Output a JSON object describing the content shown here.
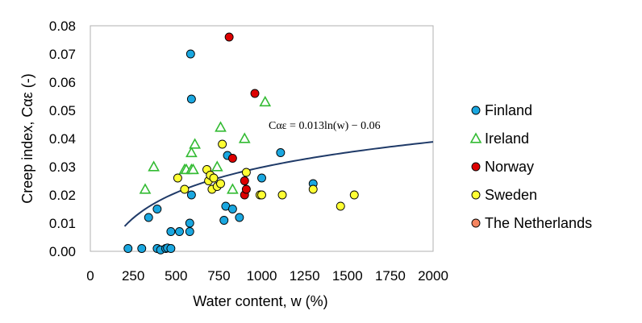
{
  "chart_data": {
    "type": "scatter",
    "xlabel": "Water content, w (%)",
    "ylabel": "Creep index, Cαε (-)",
    "xlim": [
      0,
      2000
    ],
    "ylim": [
      0,
      0.08
    ],
    "xticks": [
      "0",
      "250",
      "500",
      "750",
      "1000",
      "1250",
      "1500",
      "1750",
      "2000"
    ],
    "yticks": [
      "0.00",
      "0.01",
      "0.02",
      "0.03",
      "0.04",
      "0.05",
      "0.06",
      "0.07",
      "0.08"
    ],
    "grid": false,
    "legend_position": "right",
    "series": [
      {
        "name": "Finland",
        "marker": "circle",
        "color": "#1aa7e0",
        "points": [
          [
            220,
            0.001
          ],
          [
            300,
            0.001
          ],
          [
            340,
            0.012
          ],
          [
            390,
            0.015
          ],
          [
            390,
            0.001
          ],
          [
            410,
            0.0005
          ],
          [
            440,
            0.001
          ],
          [
            450,
            0.0012
          ],
          [
            470,
            0.001
          ],
          [
            470,
            0.007
          ],
          [
            520,
            0.007
          ],
          [
            580,
            0.007
          ],
          [
            580,
            0.01
          ],
          [
            585,
            0.07
          ],
          [
            590,
            0.054
          ],
          [
            590,
            0.02
          ],
          [
            780,
            0.011
          ],
          [
            790,
            0.016
          ],
          [
            800,
            0.034
          ],
          [
            830,
            0.015
          ],
          [
            870,
            0.012
          ],
          [
            1000,
            0.026
          ],
          [
            1110,
            0.035
          ],
          [
            1300,
            0.024
          ]
        ]
      },
      {
        "name": "Ireland",
        "marker": "triangle",
        "color": "#33bb33",
        "points": [
          [
            320,
            0.022
          ],
          [
            370,
            0.03
          ],
          [
            550,
            0.029
          ],
          [
            560,
            0.029
          ],
          [
            590,
            0.029
          ],
          [
            590,
            0.035
          ],
          [
            600,
            0.029
          ],
          [
            610,
            0.038
          ],
          [
            740,
            0.03
          ],
          [
            760,
            0.044
          ],
          [
            830,
            0.022
          ],
          [
            900,
            0.04
          ],
          [
            1020,
            0.053
          ]
        ]
      },
      {
        "name": "Norway",
        "marker": "circle",
        "color": "#dd0000",
        "points": [
          [
            810,
            0.076
          ],
          [
            830,
            0.033
          ],
          [
            900,
            0.02
          ],
          [
            900,
            0.025
          ],
          [
            910,
            0.022
          ],
          [
            960,
            0.056
          ]
        ]
      },
      {
        "name": "Sweden",
        "marker": "circle",
        "color": "#ffff33",
        "points": [
          [
            510,
            0.026
          ],
          [
            550,
            0.022
          ],
          [
            680,
            0.029
          ],
          [
            690,
            0.025
          ],
          [
            700,
            0.027
          ],
          [
            710,
            0.022
          ],
          [
            720,
            0.026
          ],
          [
            740,
            0.023
          ],
          [
            760,
            0.024
          ],
          [
            770,
            0.038
          ],
          [
            910,
            0.028
          ],
          [
            990,
            0.02
          ],
          [
            1000,
            0.02
          ],
          [
            1120,
            0.02
          ],
          [
            1300,
            0.022
          ],
          [
            1460,
            0.016
          ],
          [
            1540,
            0.02
          ]
        ]
      },
      {
        "name": "The Netherlands",
        "marker": "circle",
        "color": "#f4845f",
        "points": []
      }
    ],
    "trendline": {
      "equation": "Cαε = 0.013ln(w) − 0.06",
      "coef": 0.013,
      "intercept": -0.06,
      "x_range": [
        200,
        2000
      ],
      "color": "#1f3a68"
    }
  }
}
